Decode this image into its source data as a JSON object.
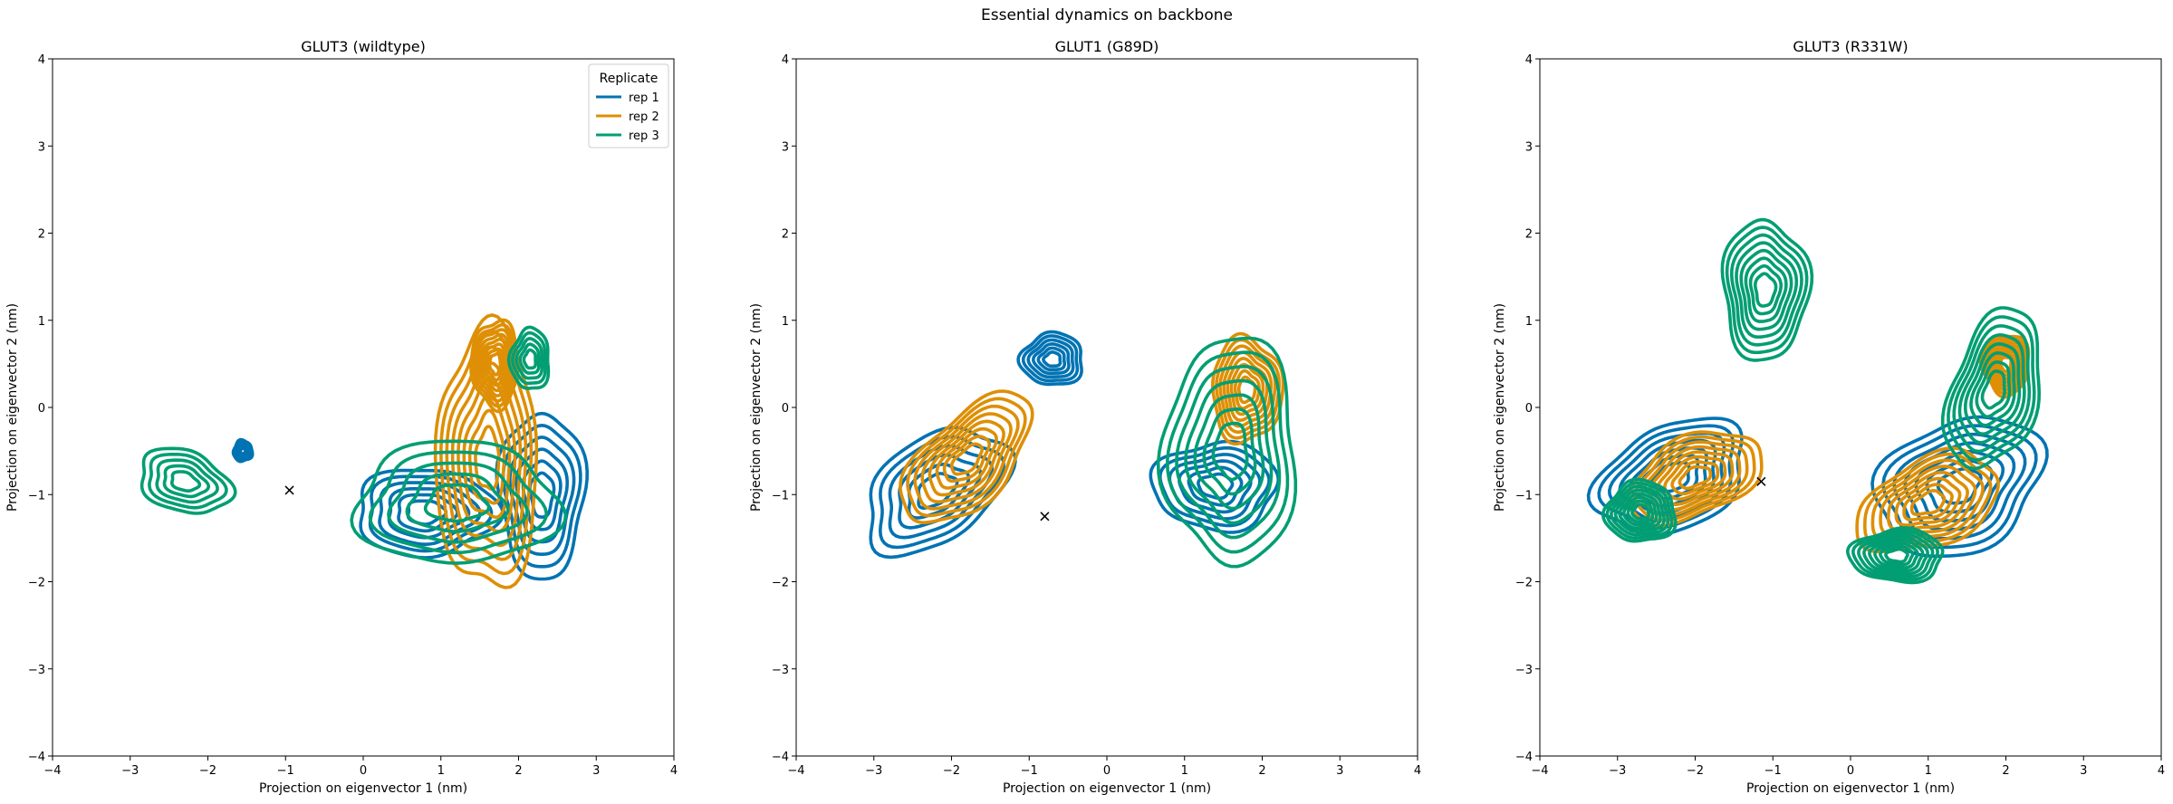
{
  "suptitle": "Essential dynamics on backbone",
  "legend": {
    "title": "Replicate",
    "entries": [
      {
        "label": "rep 1",
        "color": "#0173b2"
      },
      {
        "label": "rep 2",
        "color": "#de8f05"
      },
      {
        "label": "rep 3",
        "color": "#029e73"
      }
    ]
  },
  "chart_data": [
    {
      "type": "contour",
      "title": "GLUT3 (wildtype)",
      "xlabel": "Projection on eigenvector 1 (nm)",
      "ylabel": "Projection on eigenvector 2 (nm)",
      "xlim": [
        -4,
        4
      ],
      "ylim": [
        -4,
        4
      ],
      "xticks": [
        -4,
        -3,
        -2,
        -1,
        0,
        1,
        2,
        3,
        4
      ],
      "yticks": [
        -4,
        -3,
        -2,
        -1,
        0,
        1,
        2,
        3,
        4
      ],
      "grid": false,
      "legend_position": "top-right",
      "marker": {
        "symbol": "x",
        "x": -0.95,
        "y": -0.95
      },
      "series": [
        {
          "name": "rep 1",
          "color": "#0173b2",
          "levels": 6,
          "blobs": [
            {
              "cx": 2.3,
              "cy": -1.0,
              "rx": 0.55,
              "ry": 0.95,
              "angle": 0
            },
            {
              "cx": 0.8,
              "cy": -1.2,
              "rx": 0.9,
              "ry": 0.5,
              "angle": 0
            },
            {
              "cx": -1.55,
              "cy": -0.5,
              "rx": 0.12,
              "ry": 0.12,
              "angle": 0
            }
          ]
        },
        {
          "name": "rep 2",
          "color": "#de8f05",
          "levels": 8,
          "blobs": [
            {
              "cx": 1.6,
              "cy": -0.6,
              "rx": 0.65,
              "ry": 1.5,
              "angle": 0
            },
            {
              "cx": 1.7,
              "cy": 0.5,
              "rx": 0.3,
              "ry": 0.5,
              "angle": 0
            }
          ]
        },
        {
          "name": "rep 3",
          "color": "#029e73",
          "levels": 5,
          "blobs": [
            {
              "cx": -2.3,
              "cy": -0.85,
              "rx": 0.6,
              "ry": 0.35,
              "angle": -15
            },
            {
              "cx": 1.2,
              "cy": -1.1,
              "rx": 1.3,
              "ry": 0.7,
              "angle": 0
            },
            {
              "cx": 2.15,
              "cy": 0.55,
              "rx": 0.25,
              "ry": 0.35,
              "angle": 0
            }
          ]
        }
      ]
    },
    {
      "type": "contour",
      "title": "GLUT1 (G89D)",
      "xlabel": "Projection on eigenvector 1 (nm)",
      "ylabel": "Projection on eigenvector 2 (nm)",
      "xlim": [
        -4,
        4
      ],
      "ylim": [
        -4,
        4
      ],
      "xticks": [
        -4,
        -3,
        -2,
        -1,
        0,
        1,
        2,
        3,
        4
      ],
      "yticks": [
        -4,
        -3,
        -2,
        -1,
        0,
        1,
        2,
        3,
        4
      ],
      "grid": false,
      "marker": {
        "symbol": "x",
        "x": -0.8,
        "y": -1.25
      },
      "series": [
        {
          "name": "rep 1",
          "color": "#0173b2",
          "levels": 6,
          "blobs": [
            {
              "cx": -2.2,
              "cy": -0.95,
              "rx": 1.0,
              "ry": 0.6,
              "angle": 30
            },
            {
              "cx": -0.7,
              "cy": 0.55,
              "rx": 0.4,
              "ry": 0.3,
              "angle": 0
            },
            {
              "cx": 1.4,
              "cy": -0.9,
              "rx": 0.8,
              "ry": 0.5,
              "angle": 0
            }
          ]
        },
        {
          "name": "rep 2",
          "color": "#de8f05",
          "levels": 8,
          "blobs": [
            {
              "cx": -1.8,
              "cy": -0.6,
              "rx": 1.0,
              "ry": 0.5,
              "angle": 40
            },
            {
              "cx": 1.8,
              "cy": 0.2,
              "rx": 0.45,
              "ry": 0.6,
              "angle": 0
            }
          ]
        },
        {
          "name": "rep 3",
          "color": "#029e73",
          "levels": 7,
          "blobs": [
            {
              "cx": 1.6,
              "cy": -0.5,
              "rx": 0.85,
              "ry": 1.3,
              "angle": 0
            }
          ]
        }
      ]
    },
    {
      "type": "contour",
      "title": "GLUT3 (R331W)",
      "xlabel": "Projection on eigenvector 1 (nm)",
      "ylabel": "Projection on eigenvector 2 (nm)",
      "xlim": [
        -4,
        4
      ],
      "ylim": [
        -4,
        4
      ],
      "xticks": [
        -4,
        -3,
        -2,
        -1,
        0,
        1,
        2,
        3,
        4
      ],
      "yticks": [
        -4,
        -3,
        -2,
        -1,
        0,
        1,
        2,
        3,
        4
      ],
      "grid": false,
      "marker": {
        "symbol": "x",
        "x": -1.15,
        "y": -0.85
      },
      "series": [
        {
          "name": "rep 1",
          "color": "#0173b2",
          "levels": 7,
          "blobs": [
            {
              "cx": -2.3,
              "cy": -0.8,
              "rx": 1.0,
              "ry": 0.6,
              "angle": 20
            },
            {
              "cx": 1.4,
              "cy": -0.9,
              "rx": 1.1,
              "ry": 0.75,
              "angle": 20
            }
          ]
        },
        {
          "name": "rep 2",
          "color": "#de8f05",
          "levels": 8,
          "blobs": [
            {
              "cx": -2.0,
              "cy": -0.8,
              "rx": 0.9,
              "ry": 0.45,
              "angle": 20
            },
            {
              "cx": 1.0,
              "cy": -1.1,
              "rx": 0.95,
              "ry": 0.5,
              "angle": 20
            },
            {
              "cx": 2.0,
              "cy": 0.5,
              "rx": 0.3,
              "ry": 0.35,
              "angle": 0
            }
          ]
        },
        {
          "name": "rep 3",
          "color": "#029e73",
          "levels": 8,
          "blobs": [
            {
              "cx": -1.1,
              "cy": 1.35,
              "rx": 0.55,
              "ry": 0.8,
              "angle": 0
            },
            {
              "cx": 1.85,
              "cy": 0.2,
              "rx": 0.55,
              "ry": 0.95,
              "angle": -20
            },
            {
              "cx": -2.7,
              "cy": -1.2,
              "rx": 0.45,
              "ry": 0.35,
              "angle": 0
            },
            {
              "cx": 0.6,
              "cy": -1.7,
              "rx": 0.6,
              "ry": 0.3,
              "angle": 0
            }
          ]
        }
      ]
    }
  ]
}
